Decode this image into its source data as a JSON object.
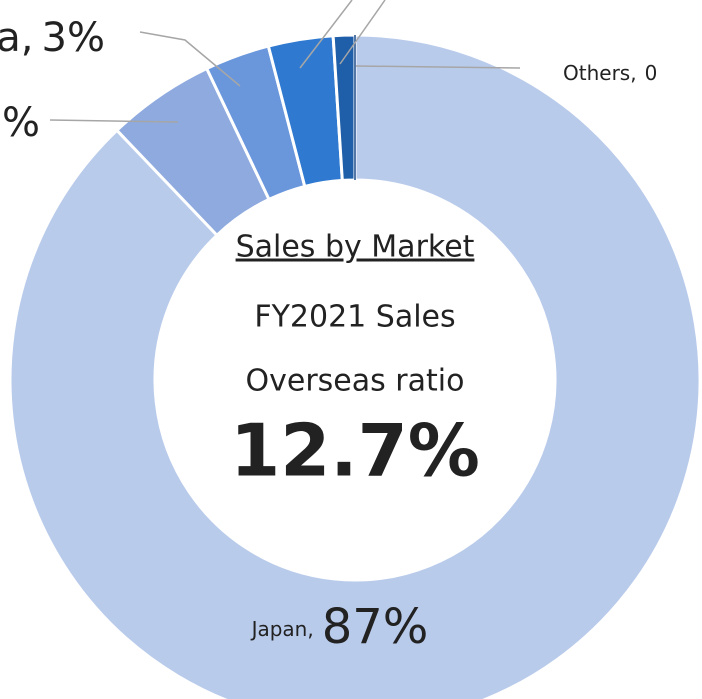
{
  "chart_data": {
    "type": "donut",
    "center_texts": [
      "Sales by Market",
      "FY2021 Sales",
      "Overseas ratio",
      "12.7%"
    ],
    "categories": [
      "Japan,",
      null,
      "a,",
      null,
      null,
      "Others,"
    ],
    "values": [
      87,
      5,
      3,
      3,
      1,
      0
    ],
    "value_labels": [
      "87%",
      "%",
      "3%",
      null,
      null,
      "0"
    ],
    "colors": [
      "#b9cbeb",
      "#8eaadf",
      "#6a97dc",
      "#2f7ad0",
      "#1f5ea8",
      "#1a4a8a"
    ]
  }
}
